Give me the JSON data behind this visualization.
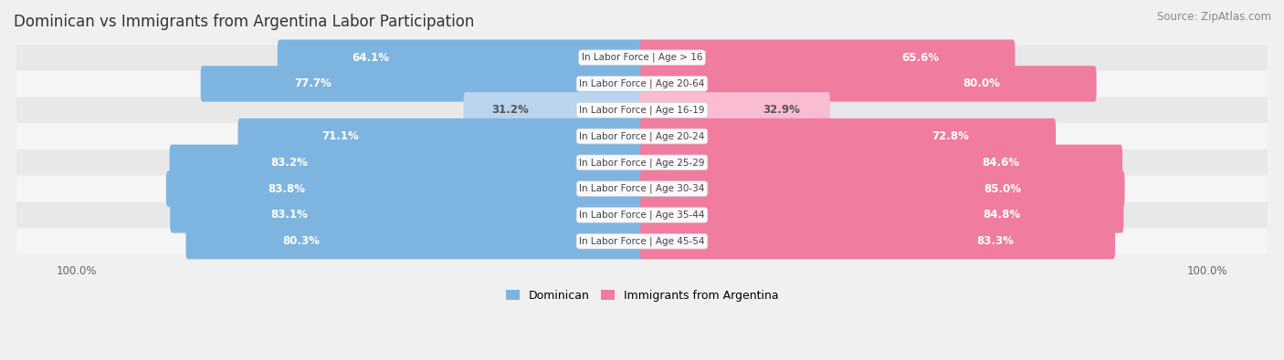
{
  "title": "Dominican vs Immigrants from Argentina Labor Participation",
  "source": "Source: ZipAtlas.com",
  "categories": [
    "In Labor Force | Age > 16",
    "In Labor Force | Age 20-64",
    "In Labor Force | Age 16-19",
    "In Labor Force | Age 20-24",
    "In Labor Force | Age 25-29",
    "In Labor Force | Age 30-34",
    "In Labor Force | Age 35-44",
    "In Labor Force | Age 45-54"
  ],
  "dominican": [
    64.1,
    77.7,
    31.2,
    71.1,
    83.2,
    83.8,
    83.1,
    80.3
  ],
  "argentina": [
    65.6,
    80.0,
    32.9,
    72.8,
    84.6,
    85.0,
    84.8,
    83.3
  ],
  "dominican_color": "#7eb5e0",
  "argentina_color": "#f07ca0",
  "dominican_color_light": "#b8d4ee",
  "argentina_color_light": "#f9bcd0",
  "background_color": "#f0f0f0",
  "row_bg_even": "#e8e8e8",
  "row_bg_odd": "#f5f5f5",
  "legend_dominican": "Dominican",
  "legend_argentina": "Immigrants from Argentina",
  "title_fontsize": 12,
  "label_fontsize": 8.5,
  "source_fontsize": 8.5
}
